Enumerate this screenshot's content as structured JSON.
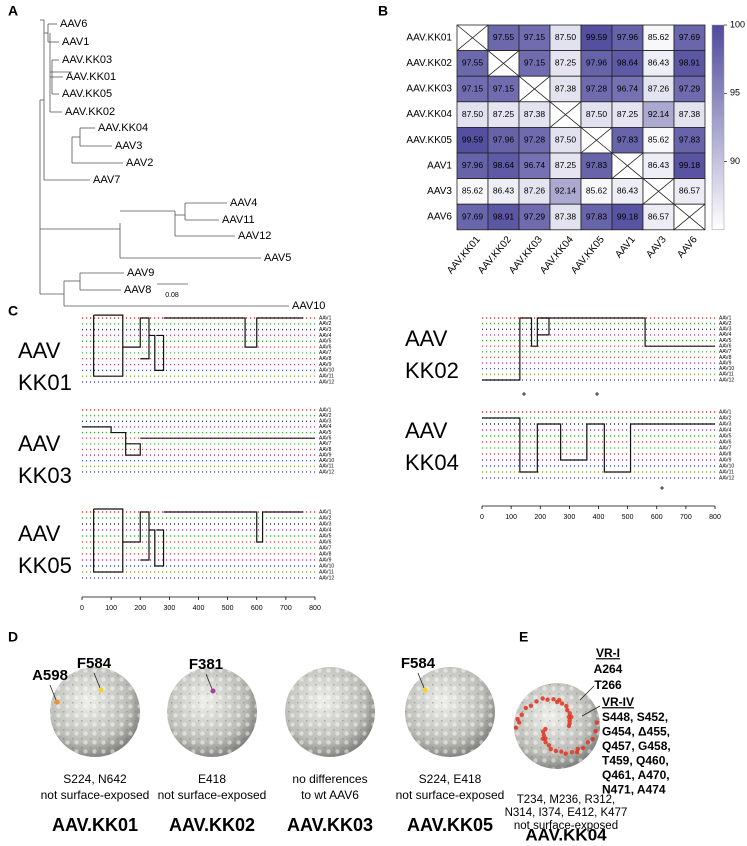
{
  "panel_labels": [
    "A",
    "B",
    "C",
    "D",
    "E"
  ],
  "tree": {
    "leaves": [
      "AAV6",
      "AAV1",
      "AAV.KK03",
      "AAV.KK01",
      "AAV.KK05",
      "AAV.KK02",
      "AAV.KK04",
      "AAV3",
      "AAV2",
      "AAV7",
      "AAV4",
      "AAV11",
      "AAV12",
      "AAV5",
      "AAV9",
      "AAV8",
      "AAV10"
    ],
    "highlight_leaves": [
      "AAV.KK03",
      "AAV.KK01",
      "AAV.KK05",
      "AAV.KK02",
      "AAV.KK04"
    ],
    "highlight_color": "#e0402a",
    "scale_label": "0.08"
  },
  "heatmap": {
    "rows": [
      "AAV.KK01",
      "AAV.KK02",
      "AAV.KK03",
      "AAV.KK04",
      "AAV.KK05",
      "AAV1",
      "AAV3",
      "AAV6"
    ],
    "columns": [
      "AAV.KK01",
      "AAV.KK02",
      "AAV.KK03",
      "AAV.KK04",
      "AAV.KK05",
      "AAV1",
      "AAV3",
      "AAV6"
    ],
    "values": [
      [
        null,
        97.55,
        97.15,
        87.5,
        99.59,
        97.96,
        85.62,
        97.69
      ],
      [
        97.55,
        null,
        97.15,
        87.25,
        97.96,
        98.64,
        86.43,
        98.91
      ],
      [
        97.15,
        97.15,
        null,
        87.38,
        97.28,
        96.74,
        87.26,
        97.29
      ],
      [
        87.5,
        87.25,
        87.38,
        null,
        87.5,
        87.25,
        92.14,
        87.38
      ],
      [
        99.59,
        97.96,
        97.28,
        87.5,
        null,
        97.83,
        85.62,
        97.83
      ],
      [
        97.96,
        98.64,
        96.74,
        87.25,
        97.83,
        null,
        86.43,
        99.18
      ],
      [
        85.62,
        86.43,
        87.26,
        92.14,
        85.62,
        86.43,
        null,
        86.57
      ],
      [
        97.69,
        98.91,
        97.29,
        87.38,
        97.83,
        99.18,
        86.57,
        null
      ]
    ],
    "value_labels": [
      [
        null,
        "97.55",
        "97.15",
        "87.50",
        "99.59",
        "97.96",
        "85.62",
        "97.69"
      ],
      [
        "97.55",
        null,
        "97.15",
        "87.25",
        "97.96",
        "98.64",
        "86.43",
        "98.91"
      ],
      [
        "97.15",
        "97.15",
        null,
        "87.38",
        "97.28",
        "96.74",
        "87.26",
        "97.29"
      ],
      [
        "87.50",
        "87.25",
        "87.38",
        null,
        "87.50",
        "87.25",
        "92.14",
        "87.38"
      ],
      [
        "99.59",
        "97.96",
        "97.28",
        "87.50",
        null,
        "97.83",
        "85.62",
        "97.83"
      ],
      [
        "97.96",
        "98.64",
        "96.74",
        "87.25",
        "97.83",
        null,
        "86.43",
        "99.18"
      ],
      [
        "85.62",
        "86.43",
        "87.26",
        "92.14",
        "85.62",
        "86.43",
        null,
        "86.57"
      ],
      [
        "97.69",
        "98.91",
        "97.29",
        "87.38",
        "97.83",
        "99.18",
        "86.57",
        null
      ]
    ],
    "clim": [
      85,
      100
    ],
    "colorbar_ticks": [
      90,
      95,
      100
    ],
    "colormap": [
      "#ffffff",
      "#4f4a9c"
    ]
  },
  "recombination": {
    "sequences": [
      "AAV1",
      "AAV2",
      "AAV3",
      "AAV4",
      "AAV5",
      "AAV6",
      "AAV7",
      "AAV8",
      "AAV9",
      "AAV10",
      "AAV11",
      "AAV12"
    ],
    "panels": [
      {
        "label": [
          "AAV",
          "KK01"
        ]
      },
      {
        "label": [
          "AAV",
          "KK02"
        ]
      },
      {
        "label": [
          "AAV",
          "KK03"
        ]
      },
      {
        "label": [
          "AAV",
          "KK04"
        ]
      },
      {
        "label": [
          "AAV",
          "KK05"
        ]
      }
    ],
    "xlim": [
      0,
      800
    ],
    "xticks": [
      0,
      100,
      200,
      300,
      400,
      500,
      600,
      700,
      800
    ]
  },
  "capsids": [
    {
      "highlights": [
        {
          "text": "A598",
          "color": "#f0922b"
        },
        {
          "text": "F584",
          "color": "#f2d22e"
        }
      ],
      "notes": [
        "S224, N642",
        "not surface-exposed"
      ],
      "name": "AAV.KK01"
    },
    {
      "highlights": [
        {
          "text": "F381",
          "color": "#a0439a"
        }
      ],
      "notes": [
        "E418",
        "not surface-exposed"
      ],
      "name": "AAV.KK02"
    },
    {
      "highlights": [],
      "notes": [
        "no differences",
        "to wt AAV6"
      ],
      "name": "AAV.KK03"
    },
    {
      "highlights": [
        {
          "text": "F584",
          "color": "#f2d22e"
        }
      ],
      "notes": [
        "S224, E418",
        "not surface-exposed"
      ],
      "name": "AAV.KK05"
    }
  ],
  "kk04": {
    "vr1": {
      "title": "VR-I",
      "color": "#a0439a",
      "lines": [
        "A264",
        "T266"
      ]
    },
    "vr4": {
      "title": "VR-IV",
      "color": "#e0331f",
      "lines": [
        "S448, S452,",
        "G454, Δ455,",
        "Q457, G458,",
        "T459, Q460,",
        "Q461, A470,",
        "N471, A474"
      ]
    },
    "notes": [
      "T234, M236, R312,",
      "N314, I374, E412, K477",
      "not surface-exposed"
    ],
    "name": "AAV.KK04"
  }
}
